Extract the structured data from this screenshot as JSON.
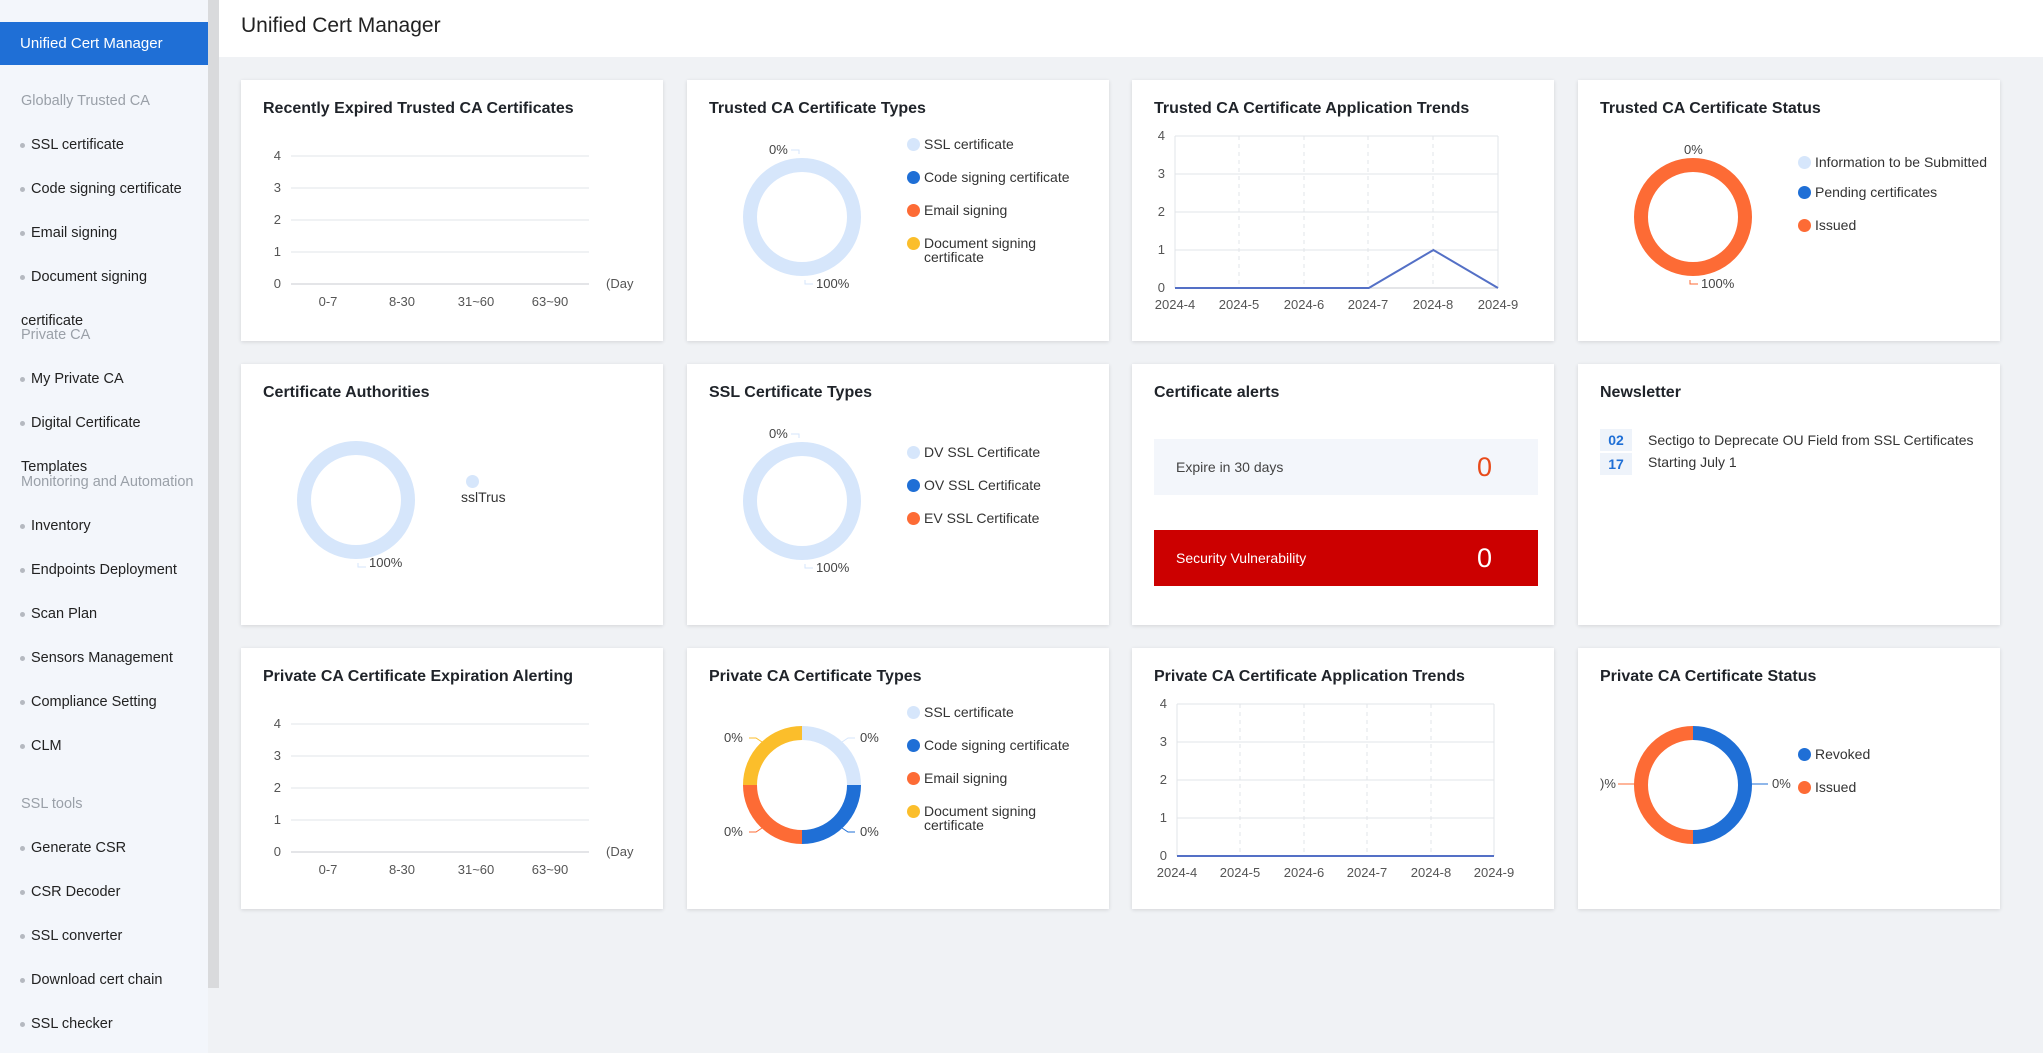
{
  "app_title": "Unified Cert Manager",
  "sidebar": {
    "active": "Unified Cert Manager",
    "groups": {
      "trusted": "Globally Trusted CA",
      "private": "Private CA",
      "monitoring": "Monitoring and Automation",
      "tools": "SSL tools"
    },
    "trusted_items": [
      "SSL certificate",
      "Code signing certificate",
      "Email signing",
      "Document signing"
    ],
    "trusted_tail": "certificate",
    "private_items": [
      "My Private CA",
      "Digital Certificate"
    ],
    "private_tail": "Templates",
    "monitoring_items": [
      "Inventory",
      "Endpoints Deployment",
      "Scan Plan",
      "Sensors Management",
      "Compliance Setting",
      "CLM"
    ],
    "tools_items": [
      "Generate CSR",
      "CSR Decoder",
      "SSL converter",
      "Download cert chain",
      "SSL checker"
    ]
  },
  "colors": {
    "primary": "#1f6fd6",
    "light_blue": "#d6e6fb",
    "orange": "#fd6b35",
    "yellow": "#fbbe2b",
    "red": "#cc0000",
    "line": "#5470c6"
  },
  "cards": {
    "recent_expired": {
      "title": "Recently Expired Trusted CA Certificates",
      "y_ticks": [
        "4",
        "3",
        "2",
        "1",
        "0"
      ],
      "x_ticks": [
        "0-7",
        "8-30",
        "31~60",
        "63~90"
      ],
      "unit": "(Day"
    },
    "trusted_types": {
      "title": "Trusted CA Certificate Types",
      "label_top": "0%",
      "label_bottom": "100%",
      "legend": [
        "SSL certificate",
        "Code signing certificate",
        "Email signing",
        "Document signing certificate"
      ]
    },
    "trusted_trends": {
      "title": "Trusted CA Certificate Application Trends",
      "y_ticks": [
        "4",
        "3",
        "2",
        "1",
        "0"
      ],
      "x_ticks": [
        "2024-4",
        "2024-5",
        "2024-6",
        "2024-7",
        "2024-8",
        "2024-9"
      ]
    },
    "trusted_status": {
      "title": "Trusted CA Certificate Status",
      "label_top": "0%",
      "label_bottom": "100%",
      "legend": [
        "Information to be Submitted",
        "Pending certificates",
        "Issued"
      ]
    },
    "authorities": {
      "title": "Certificate Authorities",
      "label_bottom": "100%",
      "legend": [
        "sslTrus"
      ]
    },
    "ssl_types": {
      "title": "SSL Certificate Types",
      "label_top": "0%",
      "label_bottom": "100%",
      "legend": [
        "DV SSL Certificate",
        "OV SSL Certificate",
        "EV SSL Certificate"
      ]
    },
    "alerts": {
      "title": "Certificate alerts",
      "expire_label": "Expire in 30 days",
      "expire_count": "0",
      "vuln_label": "Security Vulnerability",
      "vuln_count": "0"
    },
    "newsletter": {
      "title": "Newsletter",
      "items": [
        {
          "month": "02",
          "day": "17",
          "text": "Sectigo to Deprecate OU Field from SSL Certificates Starting July 1"
        }
      ]
    },
    "private_expiration": {
      "title": "Private CA Certificate Expiration Alerting",
      "y_ticks": [
        "4",
        "3",
        "2",
        "1",
        "0"
      ],
      "x_ticks": [
        "0-7",
        "8-30",
        "31~60",
        "63~90"
      ],
      "unit": "(Day"
    },
    "private_types": {
      "title": "Private CA Certificate Types",
      "labels": [
        "0%",
        "0%",
        "0%",
        "0%"
      ],
      "legend": [
        "SSL certificate",
        "Code signing certificate",
        "Email signing",
        "Document signing certificate"
      ]
    },
    "private_trends": {
      "title": "Private CA Certificate Application Trends",
      "y_ticks": [
        "4",
        "3",
        "2",
        "1",
        "0"
      ],
      "x_ticks": [
        "2024-4",
        "2024-5",
        "2024-6",
        "2024-7",
        "2024-8",
        "2024-9"
      ]
    },
    "private_status": {
      "title": "Private CA Certificate Status",
      "label_left": ")%",
      "label_right": "0%",
      "legend": [
        "Revoked",
        "Issued"
      ]
    }
  },
  "chart_data": [
    {
      "type": "bar",
      "title": "Recently Expired Trusted CA Certificates",
      "categories": [
        "0-7",
        "8-30",
        "31~60",
        "63~90"
      ],
      "values": [
        0,
        0,
        0,
        0
      ],
      "ylim": [
        0,
        4
      ],
      "xlabel": "(Day"
    },
    {
      "type": "pie",
      "title": "Trusted CA Certificate Types",
      "categories": [
        "SSL certificate",
        "Code signing certificate",
        "Email signing",
        "Document signing certificate"
      ],
      "values": [
        100,
        0,
        0,
        0
      ]
    },
    {
      "type": "line",
      "title": "Trusted CA Certificate Application Trends",
      "x": [
        "2024-4",
        "2024-5",
        "2024-6",
        "2024-7",
        "2024-8",
        "2024-9"
      ],
      "values": [
        0,
        0,
        0,
        0,
        1,
        0
      ],
      "ylim": [
        0,
        4
      ]
    },
    {
      "type": "pie",
      "title": "Trusted CA Certificate Status",
      "categories": [
        "Information to be Submitted",
        "Pending certificates",
        "Issued"
      ],
      "values": [
        0,
        0,
        100
      ]
    },
    {
      "type": "pie",
      "title": "Certificate Authorities",
      "categories": [
        "sslTrus"
      ],
      "values": [
        100
      ]
    },
    {
      "type": "pie",
      "title": "SSL Certificate Types",
      "categories": [
        "DV SSL Certificate",
        "OV SSL Certificate",
        "EV SSL Certificate"
      ],
      "values": [
        100,
        0,
        0
      ]
    },
    {
      "type": "bar",
      "title": "Private CA Certificate Expiration Alerting",
      "categories": [
        "0-7",
        "8-30",
        "31~60",
        "63~90"
      ],
      "values": [
        0,
        0,
        0,
        0
      ],
      "ylim": [
        0,
        4
      ],
      "xlabel": "(Day"
    },
    {
      "type": "pie",
      "title": "Private CA Certificate Types",
      "categories": [
        "SSL certificate",
        "Code signing certificate",
        "Email signing",
        "Document signing certificate"
      ],
      "values": [
        0,
        0,
        0,
        0
      ]
    },
    {
      "type": "line",
      "title": "Private CA Certificate Application Trends",
      "x": [
        "2024-4",
        "2024-5",
        "2024-6",
        "2024-7",
        "2024-8",
        "2024-9"
      ],
      "values": [
        0,
        0,
        0,
        0,
        0,
        0
      ],
      "ylim": [
        0,
        4
      ]
    },
    {
      "type": "pie",
      "title": "Private CA Certificate Status",
      "categories": [
        "Revoked",
        "Issued"
      ],
      "values": [
        0,
        0
      ]
    }
  ]
}
